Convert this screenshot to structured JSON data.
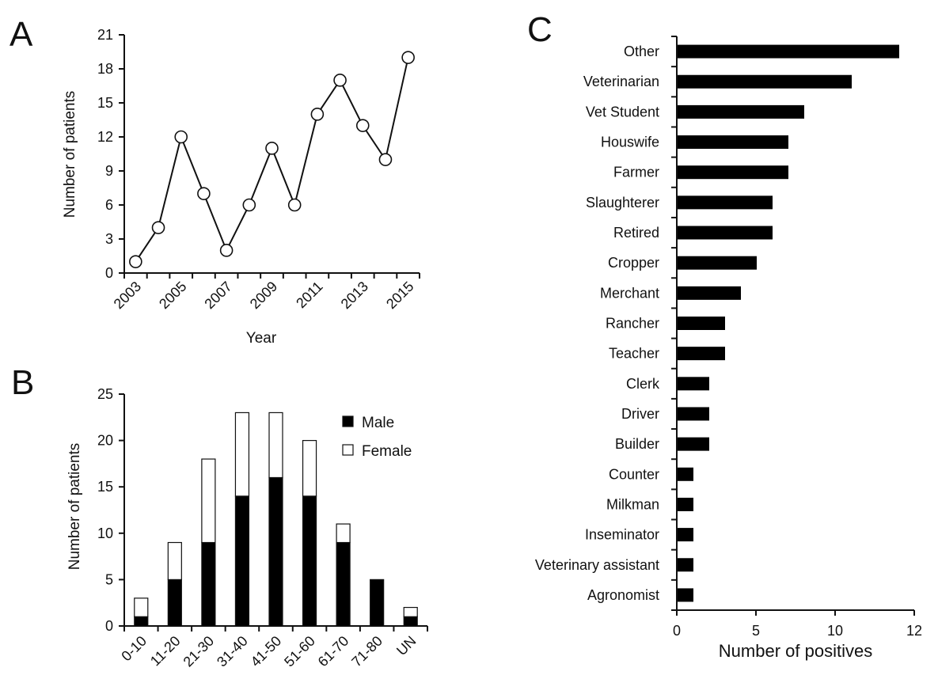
{
  "chart_data": [
    {
      "panel": "A",
      "type": "line",
      "xlabel": "Year",
      "ylabel": "Number of patients",
      "x": [
        2003,
        2004,
        2005,
        2006,
        2007,
        2008,
        2009,
        2010,
        2011,
        2012,
        2013,
        2014,
        2015
      ],
      "x_tick_labels": [
        "2003",
        "2005",
        "2007",
        "2009",
        "2011",
        "2013",
        "2015"
      ],
      "y_tick_labels": [
        "0",
        "3",
        "6",
        "9",
        "12",
        "15",
        "18",
        "21"
      ],
      "values": [
        1,
        4,
        12,
        7,
        2,
        6,
        11,
        6,
        14,
        17,
        13,
        10,
        19
      ],
      "ylim": [
        0,
        21
      ],
      "marker": "open-circle",
      "grid": false
    },
    {
      "panel": "B",
      "type": "bar",
      "stacked": true,
      "ylabel": "Number of patients",
      "categories": [
        "0-10",
        "11-20",
        "21-30",
        "31-40",
        "41-50",
        "51-60",
        "61-70",
        "71-80",
        "UN"
      ],
      "y_tick_labels": [
        "0",
        "5",
        "10",
        "15",
        "20",
        "25"
      ],
      "series": [
        {
          "name": "Male",
          "color": "#000000",
          "values": [
            1,
            5,
            9,
            14,
            16,
            14,
            9,
            5,
            1
          ]
        },
        {
          "name": "Female",
          "color": "#ffffff",
          "values": [
            2,
            4,
            9,
            9,
            7,
            6,
            2,
            0,
            1
          ]
        }
      ],
      "ylim": [
        0,
        25
      ],
      "legend_position": "top-right",
      "grid": false
    },
    {
      "panel": "C",
      "type": "bar",
      "orientation": "horizontal",
      "xlabel": "Number of positives",
      "categories": [
        "Other",
        "Veterinarian",
        "Vet Student",
        "Houswife",
        "Farmer",
        "Slaughterer",
        "Retired",
        "Cropper",
        "Merchant",
        "Rancher",
        "Teacher",
        "Clerk",
        "Driver",
        "Builder",
        "Counter",
        "Milkman",
        "Inseminator",
        "Veterinary assistant",
        "Agronomist"
      ],
      "values": [
        14,
        11,
        8,
        7,
        7,
        6,
        6,
        5,
        4,
        3,
        3,
        2,
        2,
        2,
        1,
        1,
        1,
        1,
        1
      ],
      "x_tick_labels": [
        "0",
        "5",
        "10",
        "12"
      ],
      "xlim": [
        0,
        15
      ],
      "color": "#000000",
      "grid": false
    }
  ]
}
